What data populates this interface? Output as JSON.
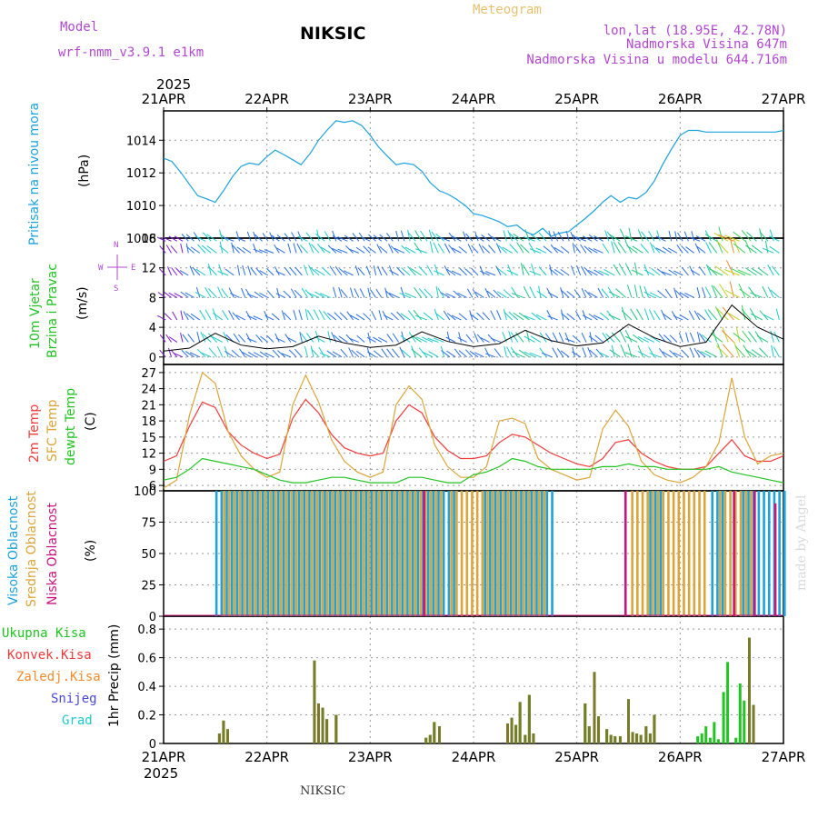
{
  "header": {
    "model_label": "Model",
    "model_name": "wrf-nmm_v3.9.1 e1km",
    "station": "NIKSIC",
    "meteogram": "Meteogram",
    "lonlat": "lon,lat (18.95E, 42.78N)",
    "elevation": "Nadmorska Visina 647m",
    "model_elevation": "Nadmorska Visina u modelu 644.716m",
    "year": "2025",
    "footer_station": "NIKSIC",
    "credit": "made by Angel"
  },
  "colors": {
    "pressure": "#1ca2dc",
    "t2m": "#ef3b3b",
    "tsfc": "#dba53a",
    "dewpt": "#22c322",
    "high_cloud": "#1ca2dc",
    "mid_cloud": "#dba53a",
    "low_cloud": "#c8157e",
    "total_precip": "#22c322",
    "conv_precip": "#ef3b3b",
    "frozen_precip": "#f08a2a",
    "snow": "#4848dc",
    "hail": "#22c8c8",
    "wind_label": "#a335d6"
  },
  "chart_data": [
    {
      "type": "line",
      "title": "",
      "xlabels": [
        "21APR",
        "22APR",
        "23APR",
        "24APR",
        "25APR",
        "26APR",
        "27APR"
      ],
      "ylabel_name": "Pritisak na nivou mora",
      "ylabel_unit": "(hPa)",
      "yticks": [
        "1008",
        "1010",
        "1012",
        "1014"
      ],
      "ylim": [
        1008,
        1015.8
      ],
      "grid": true,
      "x_days": [
        0,
        0.08,
        0.17,
        0.25,
        0.33,
        0.42,
        0.5,
        0.58,
        0.67,
        0.75,
        0.83,
        0.92,
        1.0,
        1.08,
        1.17,
        1.25,
        1.33,
        1.42,
        1.5,
        1.58,
        1.67,
        1.75,
        1.83,
        1.92,
        2.0,
        2.08,
        2.17,
        2.25,
        2.33,
        2.42,
        2.5,
        2.58,
        2.67,
        2.75,
        2.83,
        2.92,
        3.0,
        3.08,
        3.17,
        3.25,
        3.33,
        3.42,
        3.5,
        3.58,
        3.67,
        3.75,
        3.83,
        3.92,
        4.0,
        4.08,
        4.17,
        4.25,
        4.33,
        4.42,
        4.5,
        4.58,
        4.67,
        4.75,
        4.83,
        4.92,
        5.0,
        5.08,
        5.17,
        5.25,
        5.33,
        5.42,
        5.5,
        5.58,
        5.67,
        5.75,
        5.83,
        5.92,
        6.0
      ],
      "series": [
        {
          "values": [
            1012.9,
            1012.7,
            1012.0,
            1011.3,
            1010.6,
            1010.4,
            1010.2,
            1010.9,
            1011.8,
            1012.4,
            1012.6,
            1012.5,
            1013.0,
            1013.4,
            1013.1,
            1012.8,
            1012.5,
            1013.2,
            1014.0,
            1014.6,
            1015.2,
            1015.1,
            1015.2,
            1014.9,
            1014.3,
            1013.6,
            1013.0,
            1012.5,
            1012.6,
            1012.5,
            1012.1,
            1011.4,
            1010.9,
            1010.7,
            1010.4,
            1010.0,
            1009.5,
            1009.4,
            1009.2,
            1009.0,
            1008.7,
            1008.8,
            1008.4,
            1008.2,
            1008.6,
            1008.1,
            1008.3,
            1008.4,
            1008.8,
            1009.2,
            1009.7,
            1010.2,
            1010.6,
            1010.2,
            1010.5,
            1010.4,
            1010.8,
            1011.5,
            1012.5,
            1013.5,
            1014.3,
            1014.6,
            1014.6,
            1014.5,
            1014.5,
            1014.5,
            1014.5,
            1014.5,
            1014.5,
            1014.5,
            1014.5,
            1014.5,
            1014.6
          ]
        }
      ]
    },
    {
      "type": "line",
      "title": "",
      "ylabel_name": "10m Vjetar Brzina i Pravac",
      "ylabel_unit": "(m/s)",
      "compass": [
        "N",
        "W",
        "E",
        "S"
      ],
      "yticks": [
        "0",
        "4",
        "8",
        "12",
        "16"
      ],
      "ylim": [
        -1,
        16
      ],
      "grid": true,
      "x_days": [
        0,
        0.25,
        0.5,
        0.75,
        1.0,
        1.25,
        1.5,
        1.75,
        2.0,
        2.25,
        2.5,
        2.75,
        3.0,
        3.25,
        3.5,
        3.75,
        4.0,
        4.25,
        4.5,
        4.75,
        5.0,
        5.25,
        5.5,
        5.75,
        6.0
      ],
      "series": [
        {
          "name": "speed",
          "values": [
            0.8,
            1.2,
            3.2,
            1.6,
            1.1,
            1.4,
            2.8,
            1.9,
            1.3,
            1.6,
            3.4,
            2.1,
            1.4,
            1.8,
            3.6,
            2.2,
            1.5,
            1.9,
            4.4,
            2.6,
            1.4,
            2.0,
            7.0,
            4.0,
            2.4
          ]
        }
      ]
    },
    {
      "type": "line",
      "title": "",
      "ylabel_names": [
        "2m Temp",
        "SFC Temp",
        "dewpt Temp"
      ],
      "ylabel_unit": "(C)",
      "yticks": [
        "6",
        "9",
        "12",
        "15",
        "18",
        "21",
        "24",
        "27"
      ],
      "ylim": [
        5,
        28.5
      ],
      "grid": true,
      "x_days": [
        0,
        0.125,
        0.25,
        0.375,
        0.5,
        0.625,
        0.75,
        0.875,
        1.0,
        1.125,
        1.25,
        1.375,
        1.5,
        1.625,
        1.75,
        1.875,
        2.0,
        2.125,
        2.25,
        2.375,
        2.5,
        2.625,
        2.75,
        2.875,
        3.0,
        3.125,
        3.25,
        3.375,
        3.5,
        3.625,
        3.75,
        3.875,
        4.0,
        4.125,
        4.25,
        4.375,
        4.5,
        4.625,
        4.75,
        4.875,
        5.0,
        5.125,
        5.25,
        5.375,
        5.5,
        5.625,
        5.75,
        5.875,
        6.0
      ],
      "series": [
        {
          "name": "2m Temp",
          "values": [
            10.5,
            11.5,
            17.0,
            21.5,
            20.5,
            16.0,
            13.5,
            12.0,
            11.0,
            11.8,
            18.5,
            22.0,
            19.5,
            15.5,
            13.0,
            12.0,
            11.5,
            12.0,
            18.0,
            21.0,
            19.5,
            15.0,
            12.5,
            11.0,
            11.0,
            11.5,
            14.0,
            15.5,
            15.0,
            13.5,
            12.0,
            11.0,
            10.0,
            9.5,
            11.0,
            14.0,
            14.5,
            12.0,
            10.5,
            9.5,
            9.0,
            9.0,
            9.5,
            12.0,
            14.5,
            11.5,
            10.5,
            10.5,
            11.5
          ]
        },
        {
          "name": "SFC Temp",
          "values": [
            5.5,
            7.0,
            19.0,
            27.0,
            25.0,
            16.0,
            11.5,
            9.0,
            7.5,
            8.5,
            21.0,
            26.5,
            21.5,
            14.5,
            10.5,
            8.5,
            7.5,
            8.5,
            21.0,
            24.5,
            22.0,
            13.5,
            9.5,
            7.5,
            7.5,
            9.5,
            18.0,
            18.5,
            17.5,
            11.0,
            9.0,
            8.0,
            7.0,
            7.5,
            16.5,
            20.0,
            17.0,
            10.5,
            8.0,
            7.0,
            6.5,
            7.5,
            9.5,
            14.0,
            26.0,
            15.0,
            10.0,
            11.5,
            12.0
          ]
        },
        {
          "name": "dewpt Temp",
          "values": [
            7.0,
            7.5,
            9.0,
            11.0,
            10.5,
            10.0,
            9.5,
            9.0,
            8.0,
            7.0,
            6.5,
            6.5,
            7.0,
            7.5,
            7.5,
            7.0,
            6.5,
            6.5,
            6.5,
            7.5,
            7.5,
            7.0,
            6.5,
            6.5,
            8.0,
            8.5,
            9.5,
            11.0,
            10.5,
            9.5,
            9.0,
            9.0,
            9.0,
            9.0,
            9.5,
            9.5,
            10.0,
            9.5,
            9.5,
            9.0,
            9.0,
            9.0,
            9.0,
            9.5,
            8.5,
            8.0,
            7.5,
            7.0,
            6.5
          ]
        }
      ]
    },
    {
      "type": "bar",
      "title": "",
      "ylabel_names": [
        "Visoka Oblacnost",
        "Srednja Oblacnost",
        "Niska Oblacnost"
      ],
      "ylabel_unit": "(%)",
      "yticks": [
        "0",
        "25",
        "50",
        "75",
        "100"
      ],
      "ylim": [
        0,
        100
      ],
      "grid": true,
      "high": [
        [
          0.5,
          2.8,
          100
        ],
        [
          3.1,
          3.75,
          100
        ],
        [
          4.7,
          4.85,
          100
        ],
        [
          5.3,
          5.4,
          100
        ],
        [
          5.6,
          6.0,
          100
        ]
      ],
      "mid": [
        [
          0.55,
          2.7,
          100
        ],
        [
          2.75,
          3.7,
          100
        ],
        [
          4.5,
          5.25,
          100
        ],
        [
          5.35,
          5.7,
          100
        ]
      ],
      "low": [
        [
          2.5,
          2.55,
          100
        ],
        [
          4.45,
          4.5,
          100
        ],
        [
          5.5,
          5.55,
          100
        ],
        [
          5.7,
          5.75,
          100
        ],
        [
          5.9,
          5.95,
          90
        ]
      ]
    },
    {
      "type": "bar",
      "title": "",
      "ylabel_names": [
        "Ukupna Kisa",
        "Konvek.Kisa",
        "Zaledj.Kisa",
        "Snijeg",
        "Grad"
      ],
      "ylabel_unit": "1hr Precip (mm)",
      "yticks": [
        "0",
        "0.2",
        "0.4",
        "0.6",
        "0.8"
      ],
      "ylim": [
        0,
        0.89
      ],
      "grid": true,
      "x_days": [
        0.54,
        0.58,
        0.62,
        1.46,
        1.5,
        1.54,
        1.58,
        1.67,
        2.54,
        2.58,
        2.62,
        2.67,
        3.33,
        3.37,
        3.41,
        3.45,
        3.5,
        3.54,
        3.58,
        4.08,
        4.12,
        4.17,
        4.21,
        4.29,
        4.33,
        4.37,
        4.42,
        4.5,
        4.54,
        4.58,
        4.62,
        4.67,
        4.71,
        4.75,
        5.17,
        5.21,
        5.25,
        5.29,
        5.33,
        5.37,
        5.42,
        5.46,
        5.54,
        5.58,
        5.62,
        5.67,
        5.71
      ],
      "total": [
        0.07,
        0.16,
        0.1,
        0.58,
        0.28,
        0.25,
        0.17,
        0.2,
        0.04,
        0.06,
        0.15,
        0.12,
        0.14,
        0.18,
        0.13,
        0.29,
        0.06,
        0.34,
        0.07,
        0.28,
        0.12,
        0.5,
        0.19,
        0.1,
        0.06,
        0.05,
        0.05,
        0.31,
        0.08,
        0.07,
        0.06,
        0.12,
        0.07,
        0.2,
        0.05,
        0.07,
        0.12,
        0.04,
        0.15,
        0.03,
        0.36,
        0.57,
        0.04,
        0.42,
        0.3,
        0.74,
        0.27
      ],
      "frozen": [
        0.07,
        0.16,
        0.1,
        0.58,
        0.28,
        0.25,
        0.17,
        0.2,
        0.04,
        0.06,
        0.15,
        0.12,
        0.14,
        0.18,
        0.13,
        0.29,
        0.06,
        0.34,
        0.07,
        0.28,
        0.12,
        0.5,
        0.19,
        0.1,
        0.06,
        0.05,
        0.05,
        0.31,
        0.08,
        0.07,
        0.06,
        0.12,
        0.07,
        0.2,
        0,
        0,
        0,
        0,
        0,
        0,
        0,
        0,
        0,
        0,
        0,
        0.74,
        0.27
      ]
    }
  ]
}
